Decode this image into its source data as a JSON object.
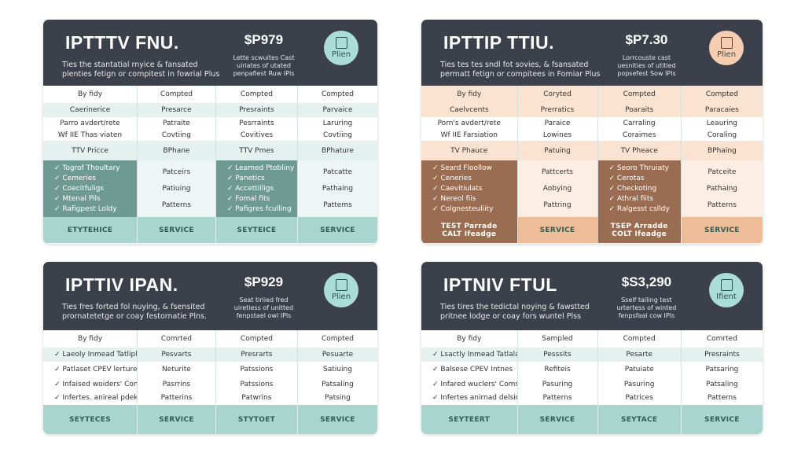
{
  "cards": [
    {
      "colors": {
        "light": "#e4f1ef",
        "mid": "#a9d5cf",
        "dark": "#6f9a92",
        "soft": "#eef6f5",
        "badge": "#a9ddd6"
      },
      "header": {
        "title": "IPTTTV FNU.",
        "subtitle": [
          "Ties the stantatial rnyice & fansated",
          "plenties fetign or compitest in fowrial Plus"
        ],
        "price": "$P979",
        "price_note": [
          "Lette scwuites Cast",
          "uiriates of utated",
          "penpafiest Ruw IPls"
        ],
        "badge": "Plien"
      },
      "table": {
        "head": [
          "By fidy",
          "Compted",
          "Compted",
          "Compted"
        ],
        "rows": [
          [
            "Caerinerice",
            "Presarce",
            "Presraints",
            "Parvaice"
          ],
          [
            "Parro avdert/rete",
            "Patraite",
            "Pesrraints",
            "Laruring"
          ],
          [
            "Wf IIE Thas viaten",
            "Covtiing",
            "Covitives",
            "Covtiing"
          ],
          [
            "TTV Pricce",
            "BPhane",
            "TTV Pmes",
            "BPhature"
          ]
        ],
        "features": [
          [
            "Togrof Thoultary",
            "Cemeries",
            "Coecitfuligs",
            "Mtenal Pils",
            "Rafigpest Loldy"
          ],
          [
            "Patceirs",
            "Patiuing",
            "Patterns"
          ],
          [
            "Leamed Ptobliny",
            "Panetics",
            "Accettiiligs",
            "Fomal fits",
            "Pafigres fculling"
          ],
          [
            "Patcatte",
            "Pathaing",
            "Pattems"
          ]
        ],
        "footer": [
          [
            "ETYTEHICE"
          ],
          [
            "SERVICE"
          ],
          [
            "SEYTEICE"
          ],
          [
            "SERVICE"
          ]
        ]
      }
    },
    {
      "colors": {
        "light": "#fbe3d1",
        "mid": "#eebd98",
        "dark": "#9a6d52",
        "soft": "#fdeee3",
        "badge": "#f6cdb0"
      },
      "header": {
        "title": "IPTTIP TTIU.",
        "subtitle": [
          "Ties tes tes sndl fot sovies, & fsansated",
          "permatt fetign or compitees in Fomiar Plus"
        ],
        "price": "$P7.30",
        "price_note": [
          "Lorrcouste cast",
          "uesnities of utitied",
          "popsefest Sow IPls"
        ],
        "badge": "Plien"
      },
      "table": {
        "head": [
          "By fidy",
          "Coryted",
          "Compted",
          "Compted"
        ],
        "rows": [
          [
            "Caelvcents",
            "Prerratics",
            "Poaraits",
            "Paracaies"
          ],
          [
            "Porn's avdert/rete",
            "Paraice",
            "Carraling",
            "Leauring"
          ],
          [
            "Wf IIE Farsiation",
            "Lowines",
            "Coraimes",
            "Coraling"
          ],
          [
            "TV Phauce",
            "Patuing",
            "TV Pheace",
            "BPhaing"
          ]
        ],
        "features": [
          [
            "Seard Floollow",
            "Ceneries",
            "Caevitiulats",
            "Nereol fiis",
            "Colgnesteuliity"
          ],
          [
            "Pattcerts",
            "Aobying",
            "Pattring"
          ],
          [
            "Seoro Thruiaty",
            "Cerotas",
            "Checkoting",
            "Athral fiits",
            "Ralgesst cslldy"
          ],
          [
            "Patceite",
            "Pathaing",
            "Patterns"
          ]
        ],
        "footer": [
          [
            "TEST Parrade",
            "CALT Ifeadge"
          ],
          [
            "SERVICE"
          ],
          [
            "TSEP Arradde",
            "COLT Ifeadge"
          ],
          [
            "SERVICE"
          ]
        ]
      }
    },
    {
      "colors": {
        "light": "#e4f1ef",
        "mid": "#a9d5cf",
        "dark": "#6f9a92",
        "soft": "#eef6f5",
        "badge": "#a9ddd6"
      },
      "header": {
        "title": "IPTTIV IPAN.",
        "subtitle": [
          "Ties fres forted fol nuying, & fsensited",
          "prornatetetge or coay festornatie Plns."
        ],
        "price": "$P929",
        "price_note": [
          "Seat tiriied fred",
          "uiretiess of unitted",
          "fenpstael owl IPls"
        ],
        "badge": "Plien"
      },
      "table": {
        "head": [
          "By fidy",
          "Comrted",
          "Compted",
          "Compted"
        ],
        "rows": [
          [
            "Laeoly Inmead Tatliplors",
            "Pesvarts",
            "Presrarts",
            "Pesuarte"
          ],
          [
            "Patlaset CPEV lertures",
            "Neturite",
            "Patssions",
            "Satiuing"
          ],
          [
            "Infaised woiders' Comsat loggi options",
            "Pasrrins",
            "Patssions",
            "Patsaling"
          ],
          [
            "Infertes. anireal pdekto rengtations",
            "Patterins",
            "Patwrins",
            "Patsing"
          ]
        ],
        "footer": [
          [
            "SEYTECES"
          ],
          [
            "SERVICE"
          ],
          [
            "STYTOET"
          ],
          [
            "SERVICE"
          ]
        ]
      }
    },
    {
      "colors": {
        "light": "#e4f1ef",
        "mid": "#a9d5cf",
        "dark": "#6f9a92",
        "soft": "#eef6f5",
        "badge": "#a9ddd6"
      },
      "header": {
        "title": "IPTNIV FTUL",
        "subtitle": [
          "Ties tires the tedictal noying & fawstted",
          "pritnee lodge or coay fors wuntel Plss"
        ],
        "price": "$S3,290",
        "price_note": [
          "Sself tailing test",
          "urtertess of winted",
          "fenpsfaal cow IPls"
        ],
        "badge": "Ifient"
      },
      "table": {
        "head": [
          "By fidy",
          "Sampled",
          "Compted",
          "Comrted"
        ],
        "rows": [
          [
            "Lsactly Inmead Tatlalats",
            "Pesssits",
            "Pesarte",
            "Presraints"
          ],
          [
            "Balsese CPEV Intnes",
            "Refiteis",
            "Patuiate",
            "Patsaring"
          ],
          [
            "Infared wuclers' Comsct logd optons",
            "Pasuring",
            "Pasuring",
            "Patsaling"
          ],
          [
            "Infertes anirnad delsins rengtations",
            "Patterns",
            "Patrices",
            "Patterns"
          ]
        ],
        "footer": [
          [
            "SEYTEERT"
          ],
          [
            "SERVICE"
          ],
          [
            "SEYTACE"
          ],
          [
            "SERVICE"
          ]
        ]
      }
    }
  ]
}
